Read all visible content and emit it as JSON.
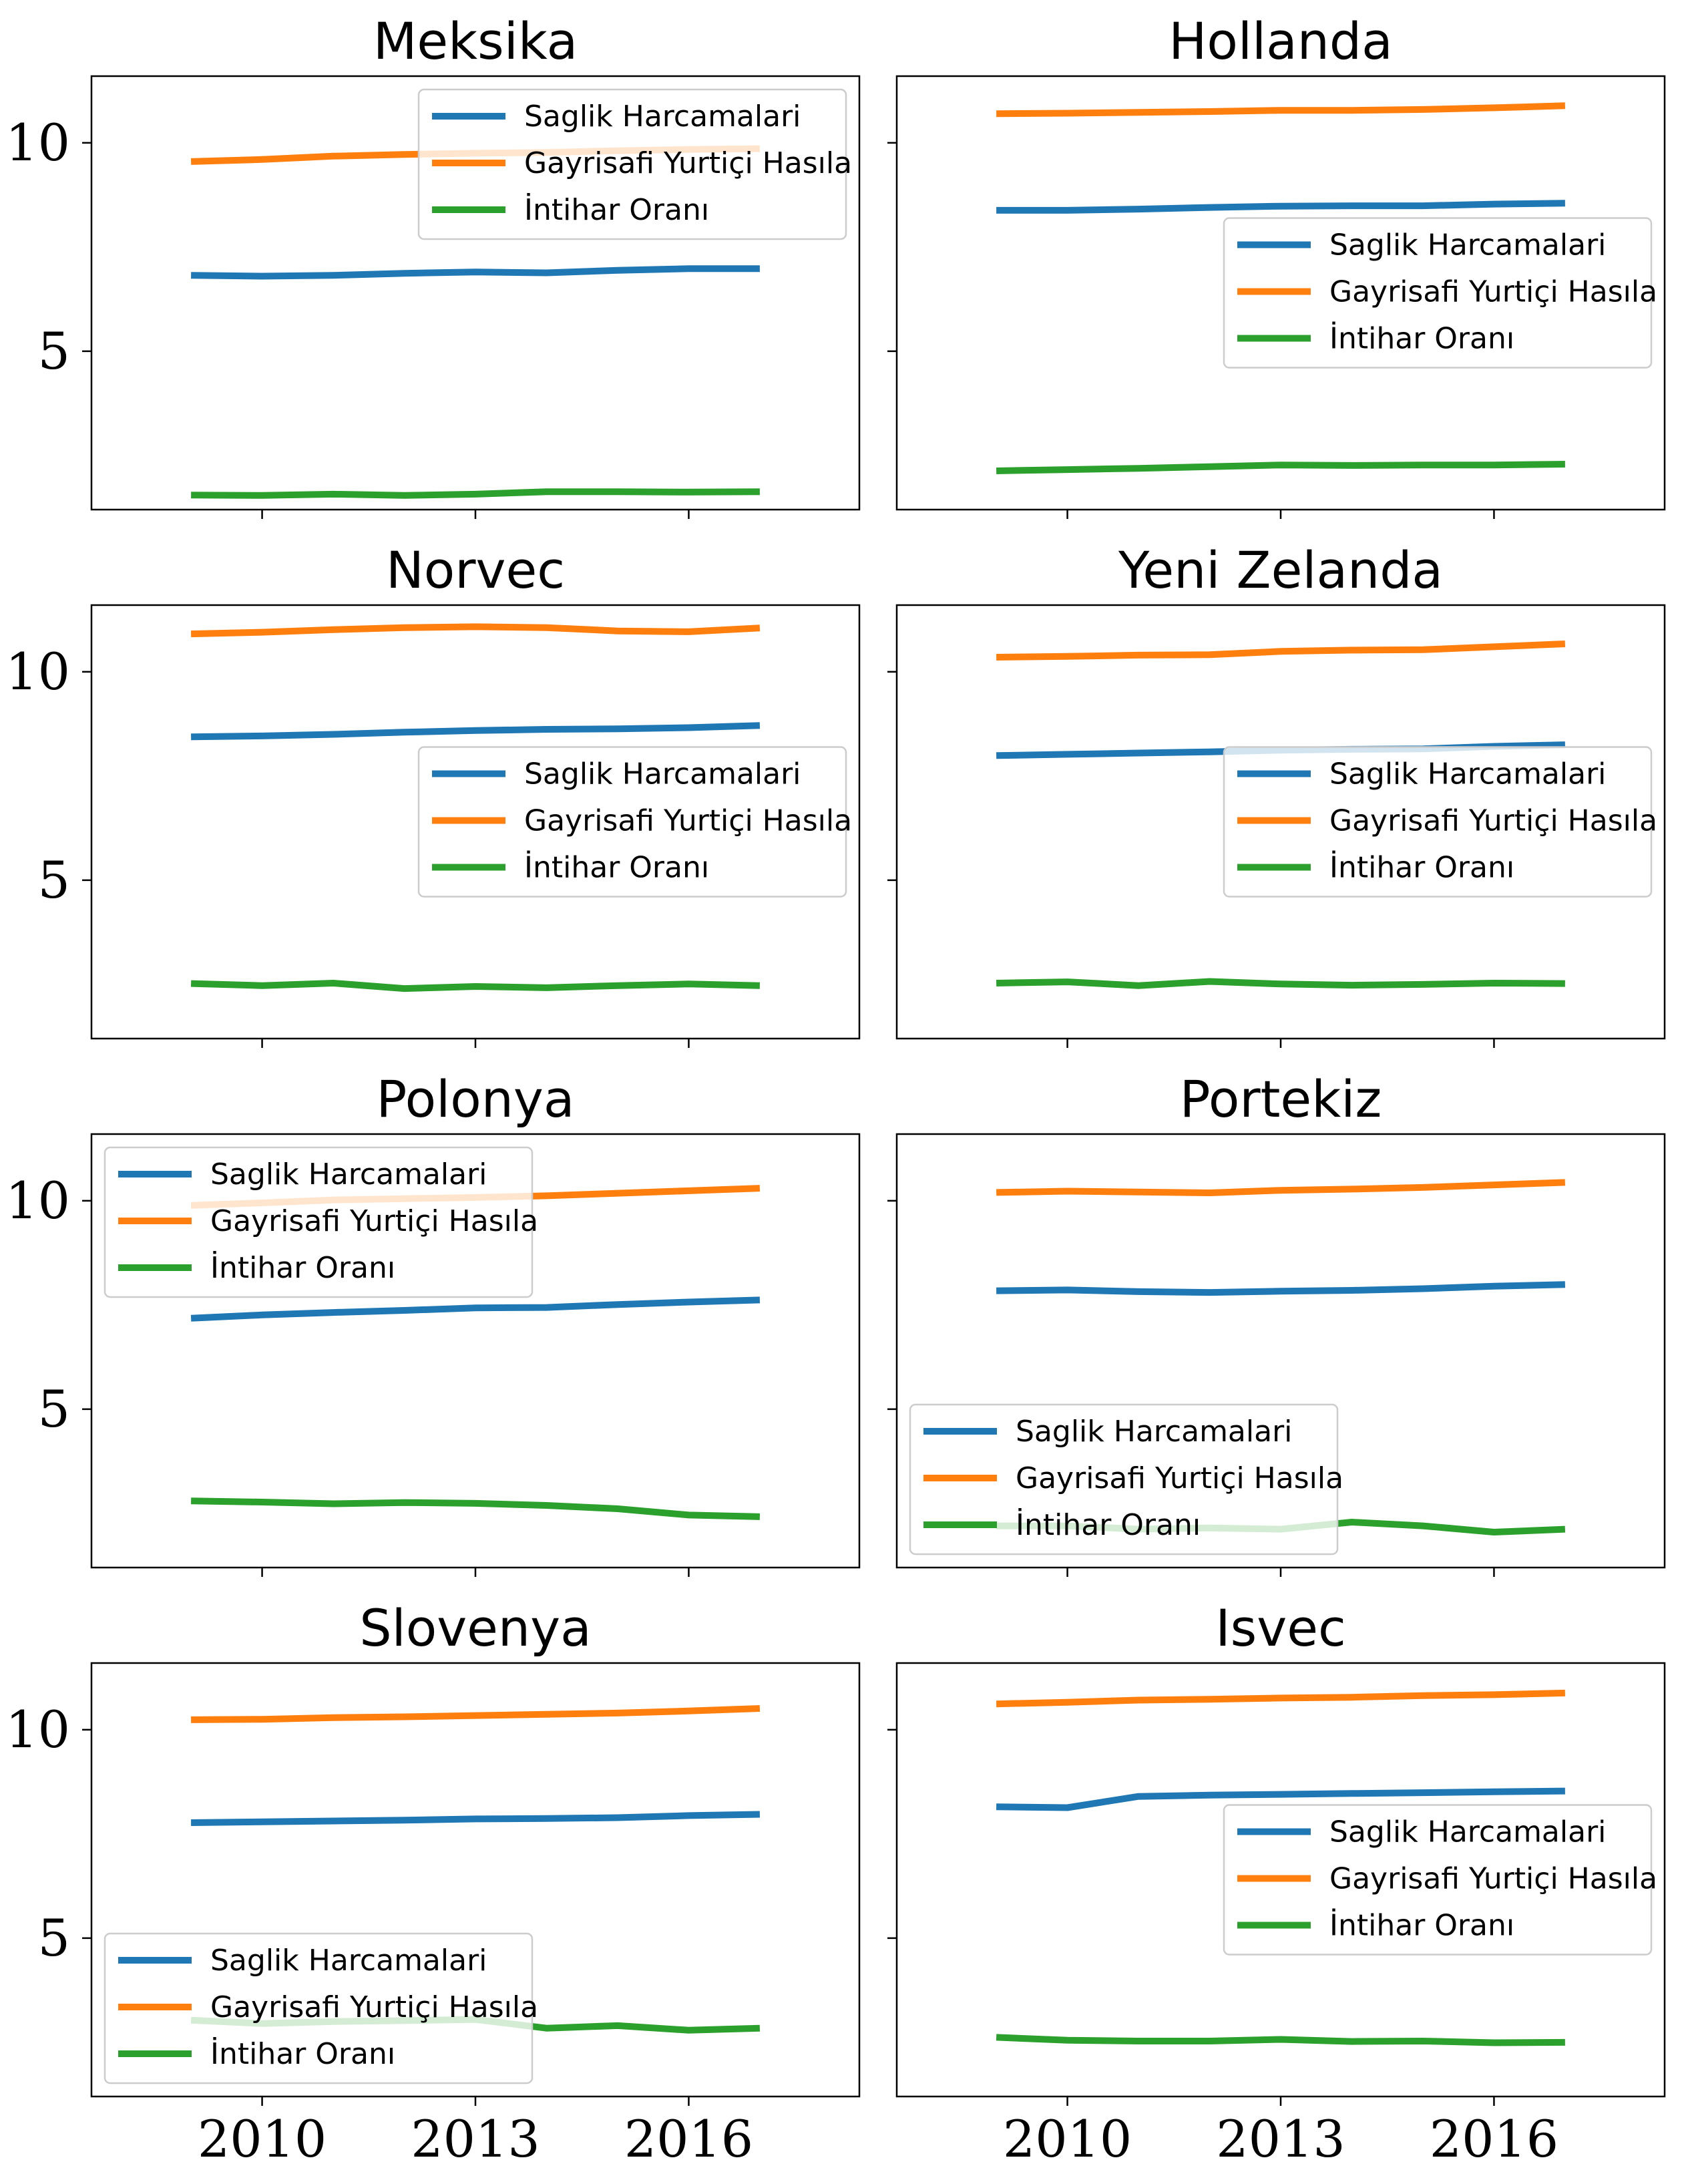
{
  "chart_data": {
    "type": "line",
    "x": [
      2009,
      2010,
      2011,
      2012,
      2013,
      2014,
      2015,
      2016,
      2017
    ],
    "xticks": [
      2010,
      2013,
      2016
    ],
    "yticks": [
      5,
      10
    ],
    "xlim": [
      2007.6,
      2018.4
    ],
    "ylim": [
      1.2,
      11.6
    ],
    "legend_labels": [
      "Saglik Harcamalari",
      "Gayrisafi Yurtiçi Hasıla",
      "İntihar Oranı"
    ],
    "colors": [
      "#1f77b4",
      "#ff7f0e",
      "#2ca02c"
    ],
    "panels": [
      {
        "title": "Meksika",
        "legend_position": "upper right",
        "series": [
          {
            "name": "Saglik Harcamalari",
            "values": [
              6.82,
              6.8,
              6.82,
              6.87,
              6.9,
              6.88,
              6.94,
              6.98,
              6.98
            ]
          },
          {
            "name": "Gayrisafi Yurtiçi Hasıla",
            "values": [
              9.55,
              9.6,
              9.68,
              9.72,
              9.75,
              9.77,
              9.81,
              9.84,
              9.86
            ]
          },
          {
            "name": "İntihar Oranı",
            "values": [
              1.55,
              1.54,
              1.57,
              1.54,
              1.57,
              1.63,
              1.63,
              1.62,
              1.63
            ]
          }
        ]
      },
      {
        "title": "Hollanda",
        "legend_position": "center right",
        "series": [
          {
            "name": "Saglik Harcamalari",
            "values": [
              8.38,
              8.38,
              8.41,
              8.45,
              8.48,
              8.49,
              8.49,
              8.53,
              8.55
            ]
          },
          {
            "name": "Gayrisafi Yurtiçi Hasıla",
            "values": [
              10.7,
              10.71,
              10.73,
              10.75,
              10.78,
              10.78,
              10.8,
              10.84,
              10.89
            ]
          },
          {
            "name": "İntihar Oranı",
            "values": [
              2.13,
              2.16,
              2.19,
              2.23,
              2.27,
              2.26,
              2.27,
              2.27,
              2.29
            ]
          }
        ]
      },
      {
        "title": "Norvec",
        "legend_position": "center right",
        "series": [
          {
            "name": "Saglik Harcamalari",
            "values": [
              8.44,
              8.46,
              8.5,
              8.55,
              8.59,
              8.62,
              8.63,
              8.66,
              8.71
            ]
          },
          {
            "name": "Gayrisafi Yurtiçi Hasıla",
            "values": [
              10.91,
              10.95,
              11.01,
              11.06,
              11.08,
              11.06,
              10.98,
              10.96,
              11.05
            ]
          },
          {
            "name": "İntihar Oranı",
            "values": [
              2.52,
              2.47,
              2.53,
              2.4,
              2.45,
              2.42,
              2.47,
              2.51,
              2.47
            ]
          }
        ]
      },
      {
        "title": "Yeni Zelanda",
        "legend_position": "center right",
        "series": [
          {
            "name": "Saglik Harcamalari",
            "values": [
              7.99,
              8.02,
              8.05,
              8.08,
              8.12,
              8.14,
              8.15,
              8.21,
              8.25
            ]
          },
          {
            "name": "Gayrisafi Yurtiçi Hasıla",
            "values": [
              10.35,
              10.37,
              10.4,
              10.41,
              10.49,
              10.52,
              10.53,
              10.6,
              10.67
            ]
          },
          {
            "name": "İntihar Oranı",
            "values": [
              2.53,
              2.56,
              2.47,
              2.57,
              2.51,
              2.48,
              2.5,
              2.53,
              2.52
            ]
          }
        ]
      },
      {
        "title": "Polonya",
        "legend_position": "upper left",
        "series": [
          {
            "name": "Saglik Harcamalari",
            "values": [
              7.18,
              7.26,
              7.32,
              7.37,
              7.43,
              7.44,
              7.51,
              7.57,
              7.62
            ]
          },
          {
            "name": "Gayrisafi Yurtiçi Hasıla",
            "values": [
              9.89,
              9.95,
              10.02,
              10.05,
              10.08,
              10.12,
              10.18,
              10.24,
              10.3
            ]
          },
          {
            "name": "İntihar Oranı",
            "values": [
              2.8,
              2.77,
              2.73,
              2.76,
              2.74,
              2.69,
              2.61,
              2.46,
              2.42
            ]
          }
        ]
      },
      {
        "title": "Portekiz",
        "legend_position": "lower left",
        "series": [
          {
            "name": "Saglik Harcamalari",
            "values": [
              7.84,
              7.86,
              7.82,
              7.8,
              7.83,
              7.85,
              7.89,
              7.95,
              7.99
            ]
          },
          {
            "name": "Gayrisafi Yurtiçi Hasıla",
            "values": [
              10.2,
              10.23,
              10.21,
              10.19,
              10.25,
              10.28,
              10.32,
              10.38,
              10.44
            ]
          },
          {
            "name": "İntihar Oranı",
            "values": [
              2.2,
              2.2,
              2.12,
              2.15,
              2.12,
              2.29,
              2.2,
              2.05,
              2.12
            ]
          }
        ]
      },
      {
        "title": "Slovenya",
        "legend_position": "lower left",
        "series": [
          {
            "name": "Saglik Harcamalari",
            "values": [
              7.77,
              7.79,
              7.81,
              7.83,
              7.86,
              7.87,
              7.89,
              7.94,
              7.97
            ]
          },
          {
            "name": "Gayrisafi Yurtiçi Hasıla",
            "values": [
              10.24,
              10.25,
              10.29,
              10.31,
              10.34,
              10.37,
              10.4,
              10.45,
              10.51
            ]
          },
          {
            "name": "İntihar Oranı",
            "values": [
              3.03,
              2.95,
              3.0,
              3.02,
              3.05,
              2.84,
              2.9,
              2.79,
              2.84
            ]
          }
        ]
      },
      {
        "title": "Isvec",
        "legend_position": "center right",
        "series": [
          {
            "name": "Saglik Harcamalari",
            "values": [
              8.15,
              8.13,
              8.4,
              8.43,
              8.45,
              8.47,
              8.49,
              8.51,
              8.53
            ]
          },
          {
            "name": "Gayrisafi Yurtiçi Hasıla",
            "values": [
              10.62,
              10.66,
              10.71,
              10.73,
              10.76,
              10.78,
              10.82,
              10.84,
              10.88
            ]
          },
          {
            "name": "İntihar Oranı",
            "values": [
              2.62,
              2.55,
              2.53,
              2.53,
              2.57,
              2.52,
              2.53,
              2.49,
              2.5
            ]
          }
        ]
      }
    ]
  }
}
